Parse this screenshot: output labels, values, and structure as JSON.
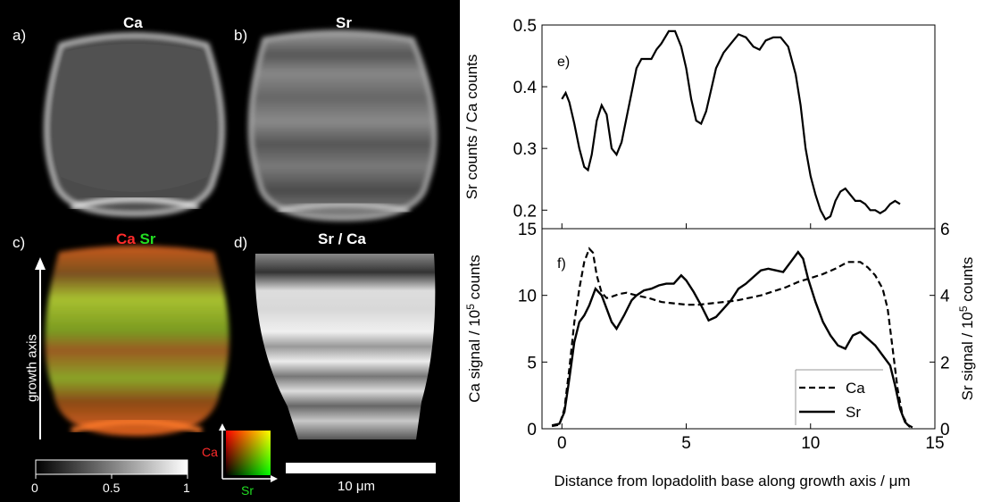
{
  "panels": {
    "a": {
      "label": "a)",
      "title": "Ca"
    },
    "b": {
      "label": "b)",
      "title": "Sr"
    },
    "c": {
      "label": "c)",
      "title_ca": "Ca",
      "title_sr": "Sr",
      "axis_label": "growth axis"
    },
    "d": {
      "label": "d)",
      "title": "Sr / Ca"
    }
  },
  "colorbar": {
    "ticks": [
      "0",
      "0.5",
      "1"
    ]
  },
  "color_legend": {
    "y_label": "Ca",
    "x_label": "Sr"
  },
  "scalebar": {
    "label": "10 μm"
  },
  "colors": {
    "ca_channel": "#ff2b2b",
    "sr_channel": "#22dd22",
    "line": "#000000"
  },
  "chart_data": [
    {
      "type": "line",
      "panel_label": "e)",
      "ylabel": "Sr counts / Ca counts",
      "ylim": [
        0.17,
        0.5
      ],
      "yticks": [
        0.2,
        0.3,
        0.4,
        0.5
      ],
      "ytick_labels": [
        "0.2",
        "0.3",
        "0.4",
        "0.5"
      ],
      "xlim": [
        -0.8,
        15
      ],
      "series": [
        {
          "style": "solid",
          "x": [
            0,
            0.15,
            0.3,
            0.5,
            0.7,
            0.9,
            1.05,
            1.2,
            1.4,
            1.6,
            1.8,
            2.0,
            2.2,
            2.4,
            2.6,
            2.8,
            3.0,
            3.2,
            3.4,
            3.6,
            3.8,
            4.0,
            4.3,
            4.55,
            4.8,
            5.0,
            5.2,
            5.4,
            5.6,
            5.8,
            6.0,
            6.2,
            6.5,
            6.8,
            7.1,
            7.4,
            7.7,
            7.95,
            8.2,
            8.5,
            8.8,
            9.1,
            9.4,
            9.6,
            9.8,
            10.0,
            10.2,
            10.4,
            10.6,
            10.8,
            11.0,
            11.2,
            11.4,
            11.6,
            11.8,
            12.0,
            12.2,
            12.4,
            12.6,
            12.8,
            13.0,
            13.2,
            13.4,
            13.6
          ],
          "y": [
            0.38,
            0.39,
            0.375,
            0.34,
            0.3,
            0.27,
            0.265,
            0.29,
            0.345,
            0.37,
            0.355,
            0.3,
            0.29,
            0.31,
            0.35,
            0.39,
            0.43,
            0.445,
            0.445,
            0.445,
            0.46,
            0.47,
            0.49,
            0.49,
            0.465,
            0.43,
            0.38,
            0.345,
            0.34,
            0.36,
            0.395,
            0.43,
            0.455,
            0.47,
            0.485,
            0.48,
            0.465,
            0.46,
            0.475,
            0.48,
            0.48,
            0.465,
            0.42,
            0.37,
            0.3,
            0.255,
            0.225,
            0.2,
            0.185,
            0.19,
            0.215,
            0.23,
            0.235,
            0.225,
            0.215,
            0.215,
            0.21,
            0.2,
            0.2,
            0.195,
            0.2,
            0.21,
            0.215,
            0.21
          ]
        }
      ]
    },
    {
      "type": "line",
      "panel_label": "f)",
      "xlabel": "Distance from lopadolith base along growth axis / μm",
      "xlim": [
        -0.8,
        15
      ],
      "xticks": [
        0,
        5,
        10,
        15
      ],
      "xtick_labels": [
        "0",
        "5",
        "10",
        "15"
      ],
      "ylabel_left": "Ca signal / 10⁵ counts",
      "ylim_left": [
        0,
        15
      ],
      "yticks_left": [
        0,
        5,
        10,
        15
      ],
      "ytick_labels_left": [
        "0",
        "5",
        "10",
        "15"
      ],
      "ylabel_right": "Sr signal / 10⁵ counts",
      "ylim_right": [
        0,
        6
      ],
      "yticks_right": [
        0,
        2,
        4,
        6
      ],
      "ytick_labels_right": [
        "0",
        "2",
        "4",
        "6"
      ],
      "legend": {
        "position": "bottom-right"
      },
      "series": [
        {
          "name": "Ca",
          "axis": "left",
          "style": "dashed",
          "x": [
            -0.4,
            -0.1,
            0.1,
            0.3,
            0.5,
            0.7,
            0.9,
            1.1,
            1.25,
            1.4,
            1.6,
            1.8,
            2.0,
            2.3,
            2.6,
            3.0,
            3.5,
            4.0,
            4.5,
            5.0,
            5.5,
            6.0,
            6.5,
            7.0,
            7.5,
            8.0,
            8.5,
            9.0,
            9.5,
            10.0,
            10.5,
            11.0,
            11.5,
            12.0,
            12.3,
            12.6,
            12.9,
            13.1,
            13.3,
            13.5,
            13.7,
            13.9,
            14.1
          ],
          "y": [
            0.2,
            0.3,
            1.5,
            4.5,
            8.0,
            10.5,
            12.5,
            13.5,
            13.2,
            11.5,
            10.2,
            9.8,
            9.9,
            10.1,
            10.2,
            10.0,
            9.8,
            9.5,
            9.4,
            9.3,
            9.3,
            9.4,
            9.5,
            9.6,
            9.8,
            10.0,
            10.3,
            10.6,
            11.0,
            11.3,
            11.6,
            12.0,
            12.5,
            12.5,
            12.1,
            11.5,
            10.5,
            9.0,
            6.0,
            3.0,
            1.0,
            0.3,
            0.1
          ]
        },
        {
          "name": "Sr",
          "axis": "right",
          "style": "solid",
          "x": [
            -0.4,
            -0.1,
            0.1,
            0.3,
            0.5,
            0.7,
            0.9,
            1.1,
            1.35,
            1.6,
            1.8,
            2.0,
            2.2,
            2.5,
            2.8,
            3.0,
            3.3,
            3.6,
            3.9,
            4.2,
            4.5,
            4.8,
            5.0,
            5.3,
            5.6,
            5.9,
            6.2,
            6.5,
            6.8,
            7.1,
            7.4,
            7.7,
            8.0,
            8.3,
            8.6,
            8.9,
            9.2,
            9.5,
            9.7,
            9.9,
            10.2,
            10.5,
            10.8,
            11.1,
            11.4,
            11.7,
            12.0,
            12.3,
            12.6,
            12.9,
            13.2,
            13.4,
            13.6,
            13.8,
            14.0
          ],
          "y": [
            0.1,
            0.15,
            0.5,
            1.5,
            2.6,
            3.2,
            3.4,
            3.7,
            4.2,
            4.0,
            3.6,
            3.2,
            3.0,
            3.4,
            3.85,
            4.0,
            4.15,
            4.2,
            4.3,
            4.35,
            4.35,
            4.6,
            4.45,
            4.1,
            3.7,
            3.25,
            3.35,
            3.6,
            3.85,
            4.2,
            4.35,
            4.55,
            4.75,
            4.8,
            4.75,
            4.7,
            5.0,
            5.3,
            5.1,
            4.5,
            3.8,
            3.2,
            2.8,
            2.5,
            2.4,
            2.8,
            2.9,
            2.7,
            2.5,
            2.2,
            1.9,
            1.3,
            0.6,
            0.2,
            0.05
          ]
        }
      ]
    }
  ]
}
